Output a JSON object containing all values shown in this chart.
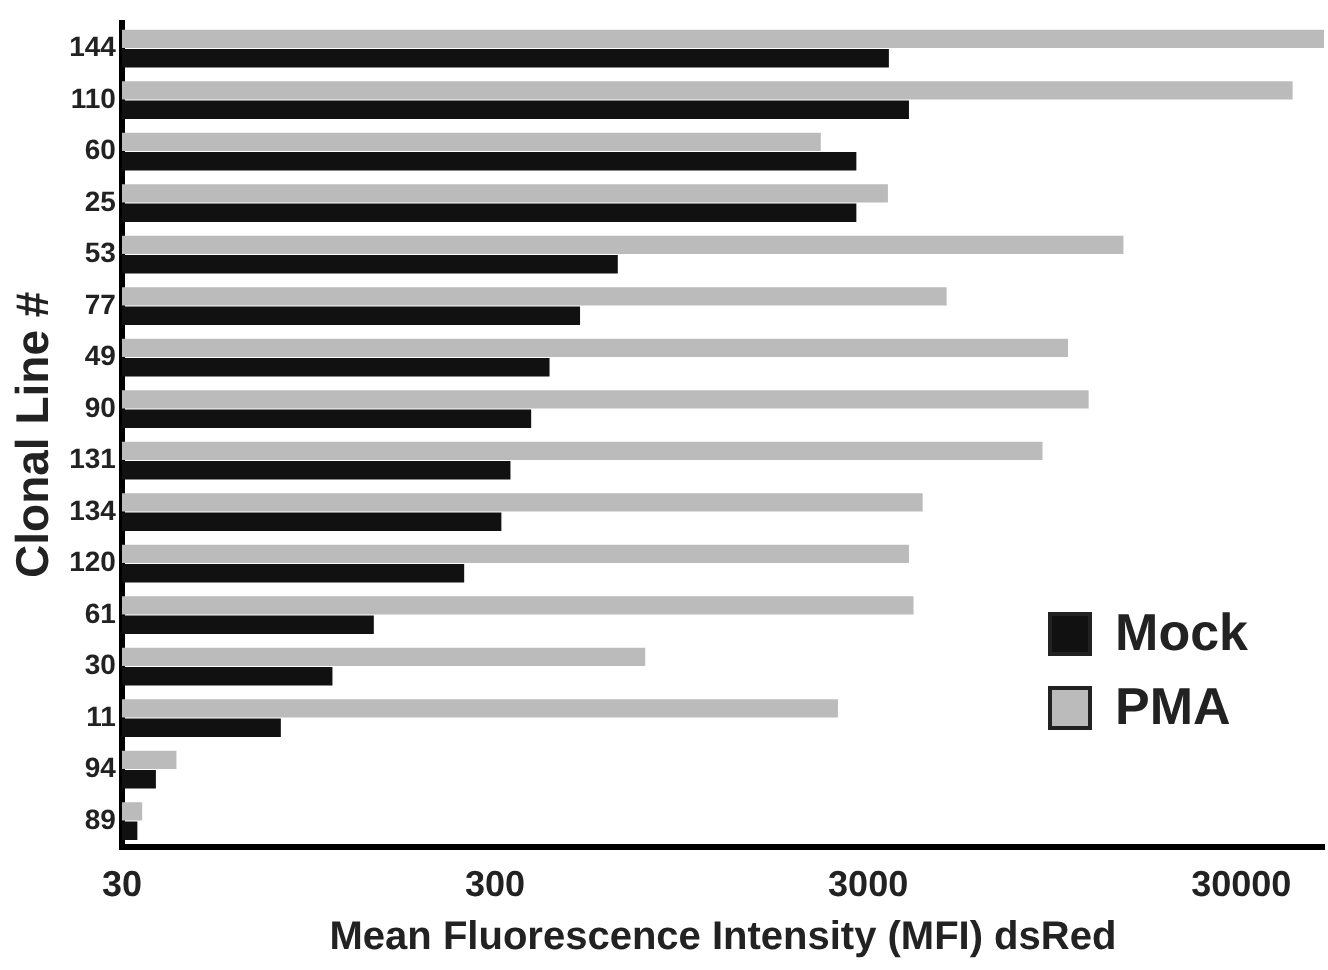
{
  "chart_data": {
    "type": "bar",
    "orientation": "horizontal",
    "xlabel": "Mean Fluorescence Intensity (MFI) dsRed",
    "ylabel": "Clonal Line #",
    "categories": [
      "144",
      "110",
      "60",
      "25",
      "53",
      "77",
      "49",
      "90",
      "131",
      "134",
      "120",
      "61",
      "30",
      "11",
      "94",
      "89"
    ],
    "series": [
      {
        "name": "Mock",
        "color": "#111111",
        "values": [
          3410,
          3860,
          2790,
          2790,
          640,
          507,
          420,
          375,
          330,
          312,
          248,
          142,
          110,
          80,
          37,
          33
        ]
      },
      {
        "name": "PMA",
        "color": "#bbbbbb",
        "values": [
          50000,
          41200,
          2240,
          3390,
          14500,
          4870,
          10300,
          11700,
          8800,
          4200,
          3860,
          3970,
          758,
          2490,
          42,
          34
        ]
      }
    ],
    "log": "x",
    "xlim": [
      30,
      50000
    ],
    "xticks": [
      30,
      300,
      3000,
      30000
    ],
    "grid": false,
    "legend": "right"
  }
}
